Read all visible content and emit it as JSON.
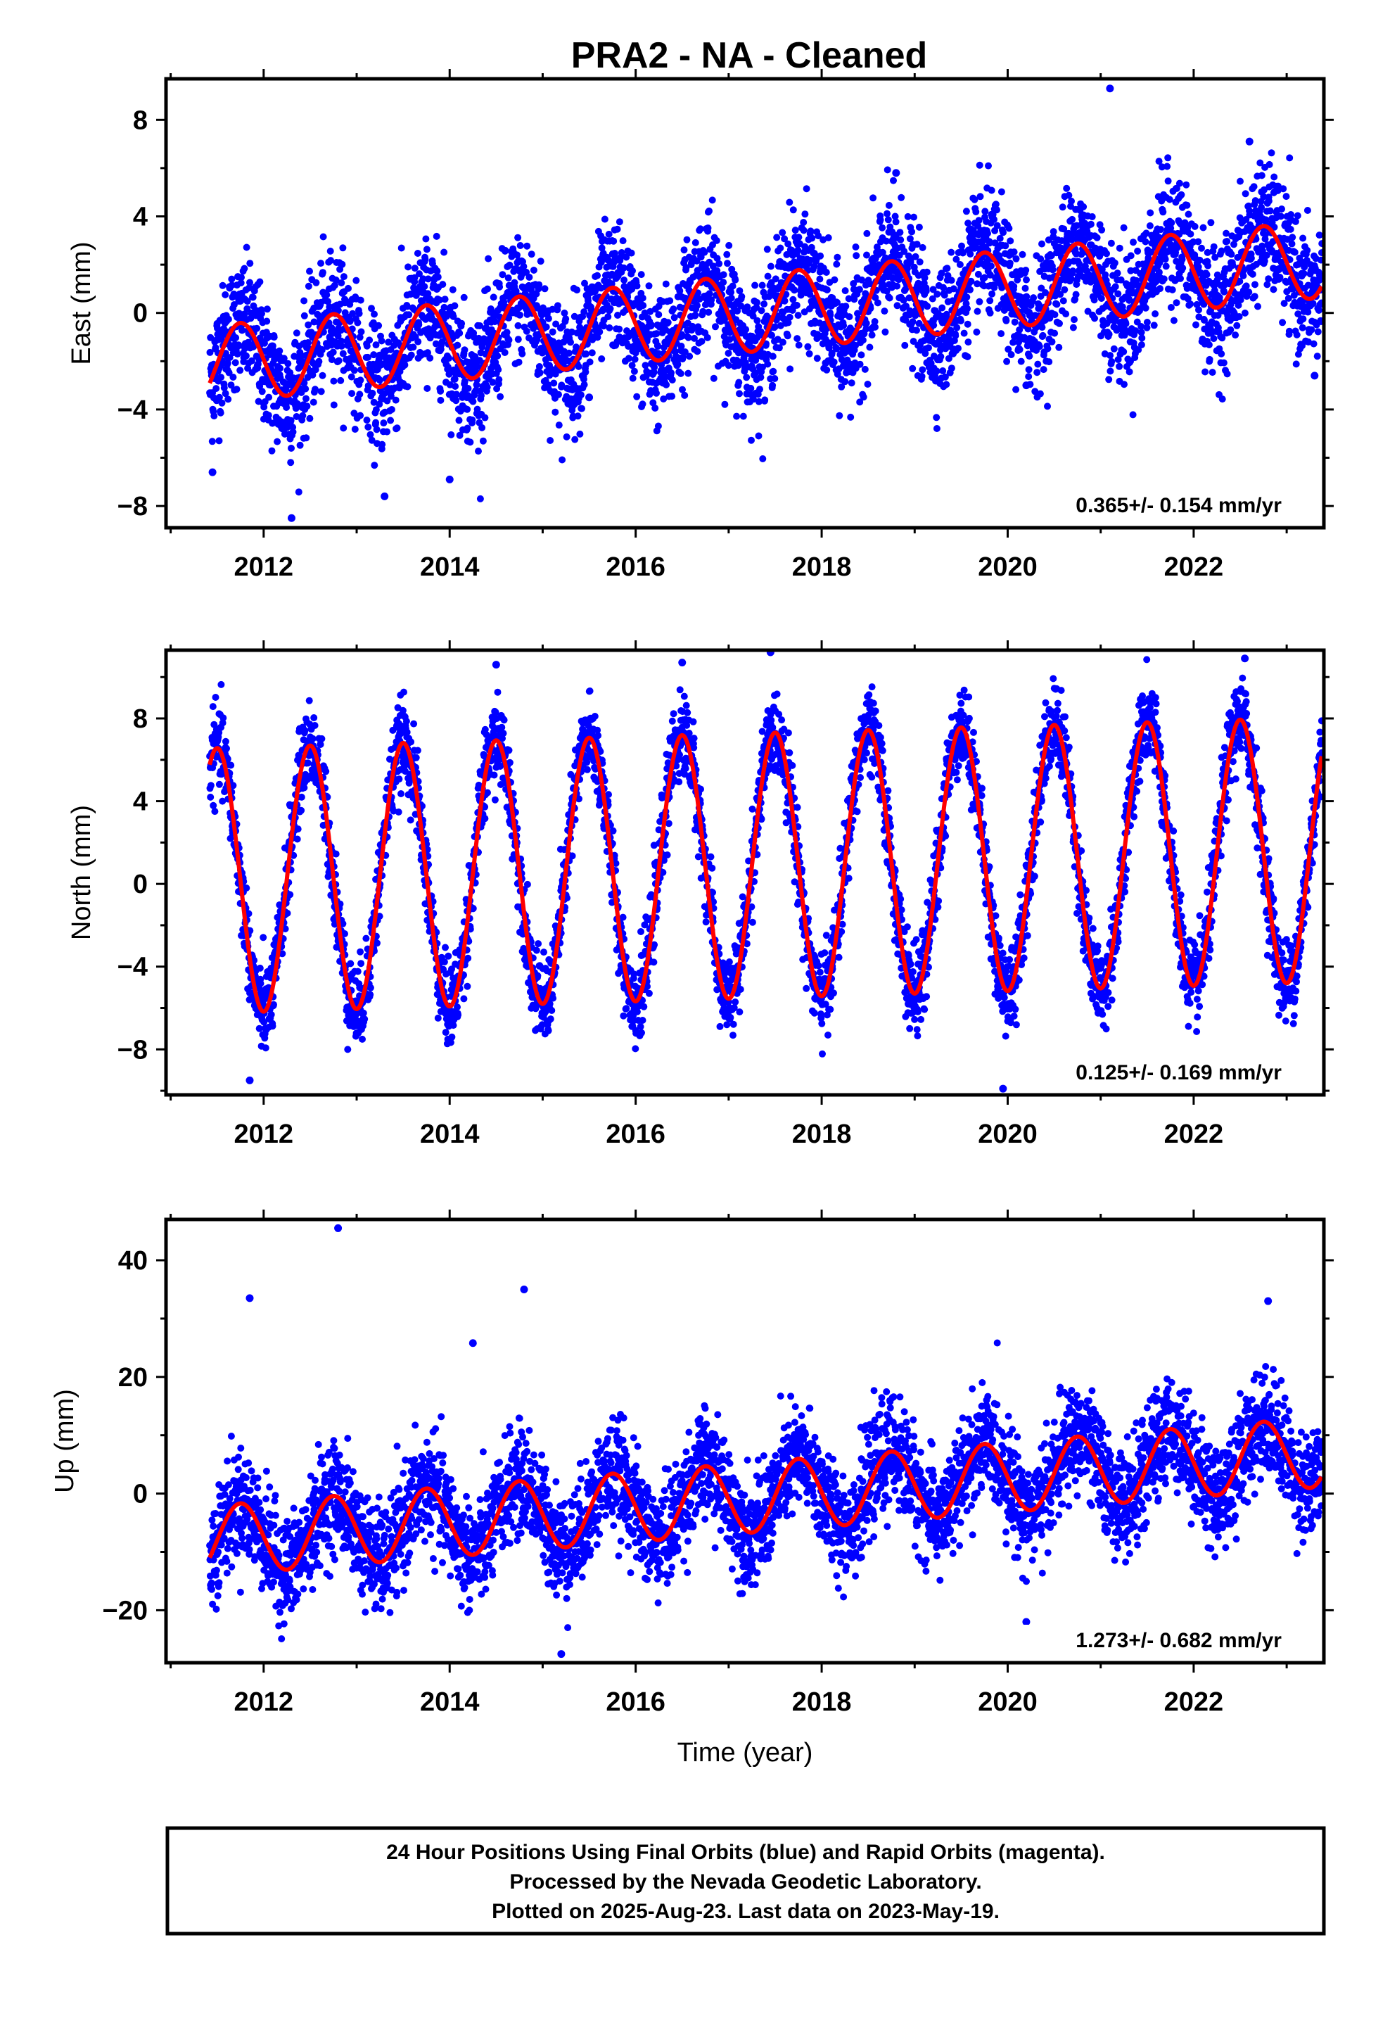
{
  "title": "PRA2  - NA - Cleaned",
  "footer": {
    "lines": [
      "24 Hour Positions Using Final Orbits (blue) and Rapid Orbits (magenta).",
      "Processed by the Nevada Geodetic Laboratory.",
      "Plotted on 2025-Aug-23. Last data on 2023-May-19."
    ]
  },
  "colors": {
    "points": "#0000ff",
    "model": "#ff0000",
    "frame": "#000000"
  },
  "chart_data": [
    {
      "type": "scatter",
      "ylabel": "East (mm)",
      "xlabel": "",
      "xlim": [
        2010.95,
        2023.4
      ],
      "ylim": [
        -8.9,
        9.7
      ],
      "x_ticks": [
        2012,
        2014,
        2016,
        2018,
        2020,
        2022
      ],
      "x_tick_labels": [
        "2012",
        "2014",
        "2016",
        "2018",
        "2020",
        "2022"
      ],
      "y_ticks": [
        -8,
        -4,
        0,
        4,
        8
      ],
      "y_tick_labels": [
        "−8",
        "−4",
        "0",
        "4",
        "8"
      ],
      "rate": "0.365+/- 0.154 mm/yr",
      "model": {
        "intercept_2017": -0.1,
        "rate_mm_per_yr": 0.365,
        "annual_amplitude": 1.6,
        "annual_peak_phase": 0.75
      },
      "scatter_std": 1.3,
      "series": [
        {
          "values_desc": "daily positions",
          "x": [
            2011.45,
            2012.3,
            2013.3,
            2014.0,
            2015.5,
            2017.0,
            2018.8,
            2020.2,
            2021.1,
            2022.6,
            2023.3
          ],
          "y": [
            -6.6,
            -8.5,
            -7.6,
            -6.9,
            -3.5,
            -0.5,
            5.8,
            -3.0,
            9.3,
            7.1,
            -2.6
          ]
        }
      ]
    },
    {
      "type": "scatter",
      "ylabel": "North (mm)",
      "xlabel": "",
      "xlim": [
        2010.95,
        2023.4
      ],
      "ylim": [
        -10.2,
        11.3
      ],
      "x_ticks": [
        2012,
        2014,
        2016,
        2018,
        2020,
        2022
      ],
      "x_tick_labels": [
        "2012",
        "2014",
        "2016",
        "2018",
        "2020",
        "2022"
      ],
      "y_ticks": [
        -8,
        -4,
        0,
        4,
        8
      ],
      "y_tick_labels": [
        "−8",
        "−4",
        "0",
        "4",
        "8"
      ],
      "rate": "0.125+/- 0.169 mm/yr",
      "model": {
        "intercept_2017": 0.85,
        "rate_mm_per_yr": 0.125,
        "annual_amplitude": 6.4,
        "annual_peak_phase": 0.5
      },
      "scatter_std": 1.0,
      "series": [
        {
          "values_desc": "daily positions",
          "x": [
            2011.85,
            2014.5,
            2016.5,
            2017.45,
            2019.95,
            2022.55
          ],
          "y": [
            -9.5,
            10.6,
            10.7,
            11.2,
            -9.9,
            10.9
          ]
        }
      ]
    },
    {
      "type": "scatter",
      "ylabel": "Up (mm)",
      "xlabel": "Time (year)",
      "xlim": [
        2010.95,
        2023.4
      ],
      "ylim": [
        -29,
        47
      ],
      "x_ticks": [
        2012,
        2014,
        2016,
        2018,
        2020,
        2022
      ],
      "x_tick_labels": [
        "2012",
        "2014",
        "2016",
        "2018",
        "2020",
        "2022"
      ],
      "y_ticks": [
        -20,
        0,
        20,
        40
      ],
      "y_tick_labels": [
        "−20",
        "0",
        "20",
        "40"
      ],
      "rate": "1.273+/- 0.682 mm/yr",
      "model": {
        "intercept_2017": -1.0,
        "rate_mm_per_yr": 1.273,
        "annual_amplitude": 6.0,
        "annual_peak_phase": 0.75
      },
      "scatter_std": 4.5,
      "series": [
        {
          "values_desc": "daily positions",
          "x": [
            2011.85,
            2012.8,
            2014.25,
            2014.8,
            2015.2,
            2020.2,
            2022.8
          ],
          "y": [
            33.5,
            45.5,
            25.8,
            35.0,
            -27.5,
            -22.0,
            33.0
          ]
        }
      ]
    }
  ]
}
